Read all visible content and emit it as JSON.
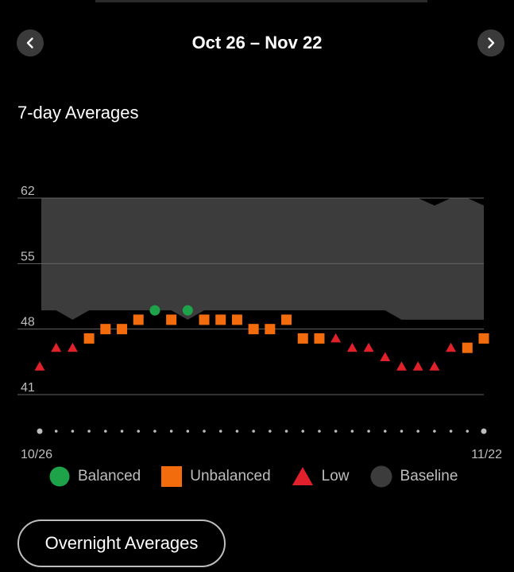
{
  "header": {
    "title": "Oct 26 – Nov 22",
    "prev_icon": "chevron-left-icon",
    "next_icon": "chevron-right-icon"
  },
  "section": {
    "title": "7-day Averages"
  },
  "legend": {
    "balanced": "Balanced",
    "unbalanced": "Unbalanced",
    "low": "Low",
    "baseline": "Baseline"
  },
  "colors": {
    "balanced": "#1fa34a",
    "unbalanced": "#f26c0d",
    "low": "#e0202a",
    "baseline": "#3c3c3c",
    "grid": "#666666",
    "tick": "#bdbdbd"
  },
  "button": {
    "overnight_label": "Overnight Averages"
  },
  "chart_data": {
    "type": "scatter",
    "yticks": [
      41,
      48,
      55,
      62
    ],
    "ylim": [
      38,
      62
    ],
    "x_start_label": "10/26",
    "x_end_label": "11/22",
    "points": [
      {
        "day": 0,
        "value": 44,
        "status": "low"
      },
      {
        "day": 1,
        "value": 46,
        "status": "low"
      },
      {
        "day": 2,
        "value": 46,
        "status": "low"
      },
      {
        "day": 3,
        "value": 47,
        "status": "unbalanced"
      },
      {
        "day": 4,
        "value": 48,
        "status": "unbalanced"
      },
      {
        "day": 5,
        "value": 48,
        "status": "unbalanced"
      },
      {
        "day": 6,
        "value": 49,
        "status": "unbalanced"
      },
      {
        "day": 7,
        "value": 50,
        "status": "balanced"
      },
      {
        "day": 8,
        "value": 49,
        "status": "unbalanced"
      },
      {
        "day": 9,
        "value": 50,
        "status": "balanced"
      },
      {
        "day": 10,
        "value": 49,
        "status": "unbalanced"
      },
      {
        "day": 11,
        "value": 49,
        "status": "unbalanced"
      },
      {
        "day": 12,
        "value": 49,
        "status": "unbalanced"
      },
      {
        "day": 13,
        "value": 48,
        "status": "unbalanced"
      },
      {
        "day": 14,
        "value": 48,
        "status": "unbalanced"
      },
      {
        "day": 15,
        "value": 49,
        "status": "unbalanced"
      },
      {
        "day": 16,
        "value": 47,
        "status": "unbalanced"
      },
      {
        "day": 17,
        "value": 47,
        "status": "unbalanced"
      },
      {
        "day": 18,
        "value": 47,
        "status": "low"
      },
      {
        "day": 19,
        "value": 46,
        "status": "low"
      },
      {
        "day": 20,
        "value": 46,
        "status": "low"
      },
      {
        "day": 21,
        "value": 45,
        "status": "low"
      },
      {
        "day": 22,
        "value": 44,
        "status": "low"
      },
      {
        "day": 23,
        "value": 44,
        "status": "low"
      },
      {
        "day": 24,
        "value": 44,
        "status": "low"
      },
      {
        "day": 25,
        "value": 46,
        "status": "low"
      },
      {
        "day": 26,
        "value": 46,
        "status": "unbalanced"
      },
      {
        "day": 27,
        "value": 47,
        "status": "unbalanced"
      }
    ],
    "baseline_upper": [
      62,
      62,
      62,
      62,
      62,
      62,
      62,
      62,
      62,
      62,
      62,
      62,
      62,
      62,
      62,
      62,
      62,
      62,
      62,
      62,
      62,
      62,
      62,
      62,
      61.2,
      62,
      62,
      61.2
    ],
    "baseline_lower": [
      50,
      50,
      49,
      50,
      50,
      50,
      50,
      50,
      50,
      49,
      50,
      50,
      50,
      50,
      50,
      50,
      50,
      50,
      50,
      50,
      50,
      50,
      49,
      49,
      49,
      49,
      49,
      49
    ]
  }
}
